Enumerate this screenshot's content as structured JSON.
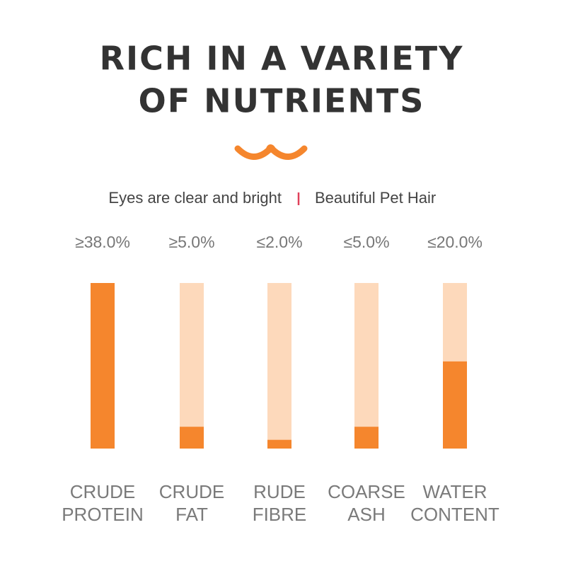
{
  "chart_data": {
    "type": "bar",
    "title": [
      "RICH IN A VARIETY",
      "OF NUTRIENTS"
    ],
    "subtitle": [
      "Eyes are clear and bright",
      "Beautiful Pet Hair"
    ],
    "categories": [
      [
        "CRUDE",
        "PROTEIN"
      ],
      [
        "CRUDE",
        "FAT"
      ],
      [
        "RUDE",
        "FIBRE"
      ],
      [
        "COARSE",
        "ASH"
      ],
      [
        "WATER",
        "CONTENT"
      ]
    ],
    "values": [
      38,
      5,
      2,
      5,
      20
    ],
    "value_labels": [
      "≥38.0%",
      "≥5.0%",
      "≤2.0%",
      "≤5.0%",
      "≤20.0%"
    ],
    "ylim": [
      0,
      38
    ],
    "color": "#f5862d",
    "track_color": "#fdd9bb"
  }
}
